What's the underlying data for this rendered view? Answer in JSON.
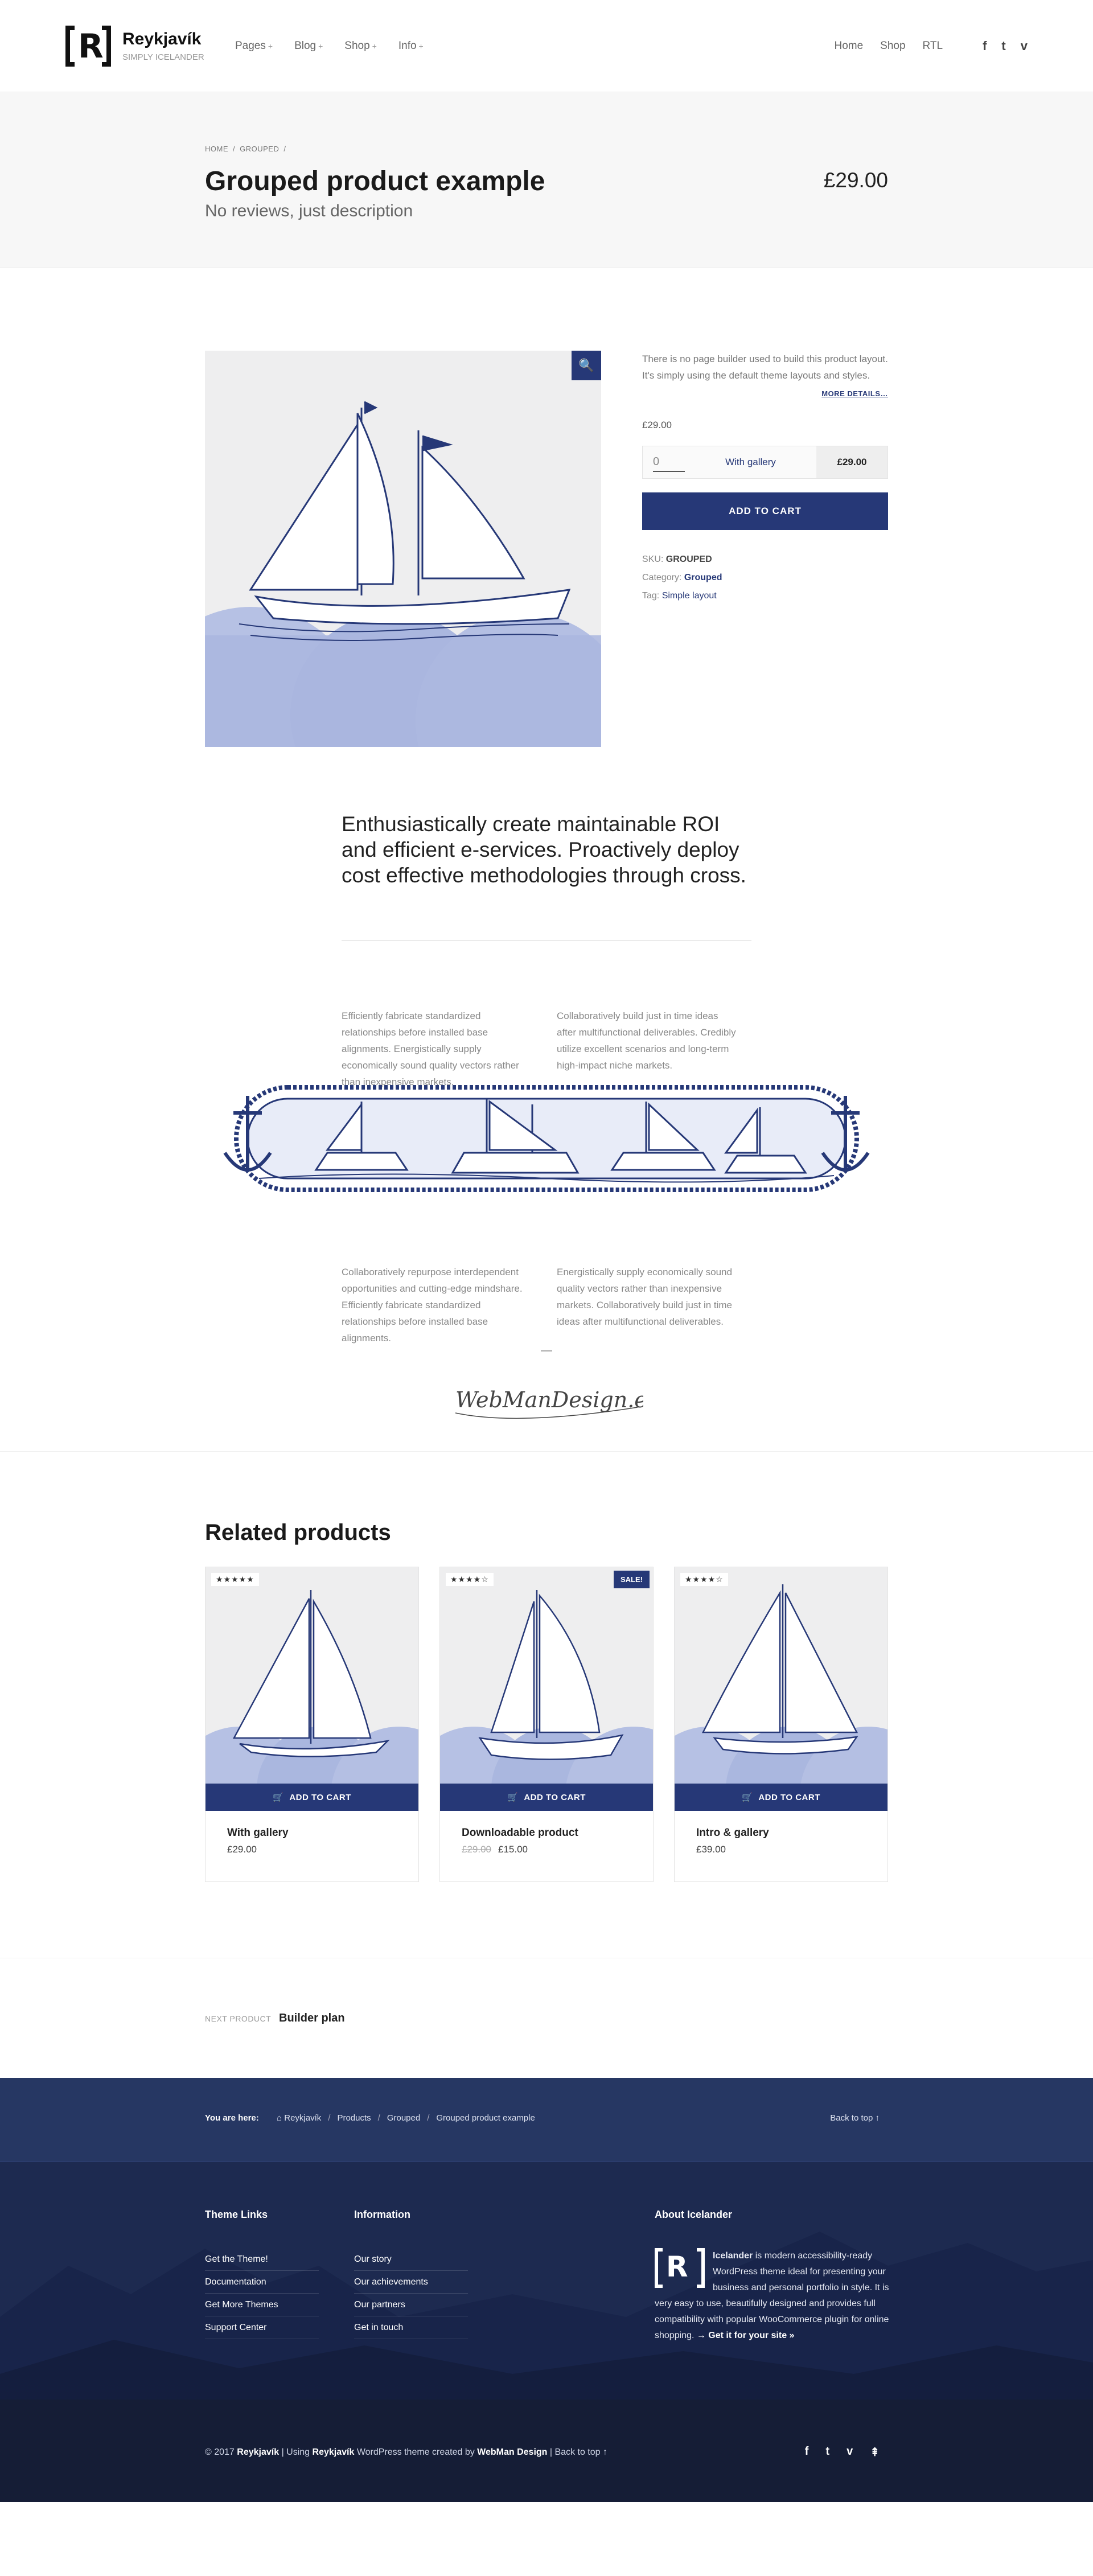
{
  "header": {
    "site_title": "Reykjavík",
    "site_description": "SIMPLY ICELANDER",
    "logo_letter": "R",
    "nav": [
      {
        "label": "Pages",
        "plus": "+"
      },
      {
        "label": "Blog",
        "plus": "+"
      },
      {
        "label": "Shop",
        "plus": "+"
      },
      {
        "label": "Info",
        "plus": "+"
      }
    ],
    "top_links": [
      "Home",
      "Shop",
      "RTL"
    ],
    "social": [
      {
        "icon": "facebook-icon",
        "glyph": "f"
      },
      {
        "icon": "twitter-icon",
        "glyph": "t"
      },
      {
        "icon": "vimeo-icon",
        "glyph": "v"
      }
    ]
  },
  "intro": {
    "breadcrumbs": [
      "HOME",
      "GROUPED"
    ],
    "separator": "/",
    "title": "Grouped product example",
    "subtitle": "No reviews, just description",
    "price": "£29.00"
  },
  "product": {
    "zoom_icon": "zoom-icon",
    "short_description": "There is no page builder used to build this product layout. It's simply using the default theme layouts and styles.",
    "more_details": "MORE DETAILS…",
    "price": "£29.00",
    "grouped_item": {
      "qty": "0",
      "name": "With gallery",
      "price": "£29.00"
    },
    "add_to_cart": "ADD TO CART",
    "meta": {
      "sku_label": "SKU:",
      "sku": "GROUPED",
      "category_label": "Category:",
      "category": "Grouped",
      "tag_label": "Tag:",
      "tag": "Simple layout"
    }
  },
  "description": {
    "lead": "Enthusiastically create maintainable ROI and efficient e-services. Proactively deploy cost effective methodologies through cross.",
    "col1": "Efficiently fabricate standardized relationships before installed base alignments. Energistically supply economically sound quality vectors rather than inexpensive markets.",
    "col2": "Collaboratively build just in time ideas after multifunctional deliverables. Credibly utilize excellent scenarios and long-term high-impact niche markets.",
    "col3": "Collaboratively repurpose interdependent opportunities and cutting-edge mindshare. Efficiently fabricate standardized relationships before installed base alignments.",
    "col4": "Energistically supply economically sound quality vectors rather than inexpensive markets. Collaboratively build just in time ideas after multifunctional deliverables.",
    "signature": "WebManDesign.eu"
  },
  "related": {
    "heading": "Related products",
    "cart_label": "ADD TO CART",
    "products": [
      {
        "title": "With gallery",
        "price": "£29.00",
        "old_price": "",
        "stars": "★★★★★",
        "rating": 5,
        "sale": ""
      },
      {
        "title": "Downloadable product",
        "price": "£15.00",
        "old_price": "£29.00",
        "stars": "★★★★☆",
        "rating": 4,
        "sale": "SALE!"
      },
      {
        "title": "Intro & gallery",
        "price": "£39.00",
        "old_price": "",
        "stars": "★★★★☆",
        "rating": 4,
        "sale": ""
      }
    ]
  },
  "next_post": {
    "label": "NEXT PRODUCT",
    "title": "Builder plan"
  },
  "footer": {
    "you_are_here": "You are here:",
    "trail": [
      "Reykjavík",
      "Products",
      "Grouped",
      "Grouped product example"
    ],
    "trail_sep": "/",
    "back_to_top": "Back to top ↑",
    "theme_links": {
      "title": "Theme Links",
      "items": [
        "Get the Theme!",
        "Documentation",
        "Get More Themes",
        "Support Center"
      ]
    },
    "information": {
      "title": "Information",
      "items": [
        "Our story",
        "Our achievements",
        "Our partners",
        "Get in touch"
      ]
    },
    "about": {
      "title": "About Icelander",
      "brand": "Icelander",
      "text": " is modern accessibility-ready WordPress theme ideal for presenting your business and personal portfolio in style. It is very easy to use, beautifully designed and provides full compatibility with popular WooCommerce plugin for online shopping. ",
      "cta": "→ Get it for your site »"
    },
    "copyright": {
      "prefix": "© 2017 ",
      "site": "Reykjavík",
      "mid1": " | Using ",
      "theme": "Reykjavík",
      "mid2": " WordPress theme created by ",
      "author": "WebMan Design",
      "mid3": " | ",
      "back": "Back to top ↑"
    },
    "social": [
      {
        "icon": "facebook-icon",
        "glyph": "f"
      },
      {
        "icon": "twitter-icon",
        "glyph": "t"
      },
      {
        "icon": "vimeo-icon",
        "glyph": "v"
      },
      {
        "icon": "back-to-top-icon",
        "glyph": "⇞"
      }
    ]
  },
  "colors": {
    "accent": "#263877",
    "footer": "#1d2a50",
    "footer_band": "#263763",
    "footer_bottom": "#151d36"
  }
}
